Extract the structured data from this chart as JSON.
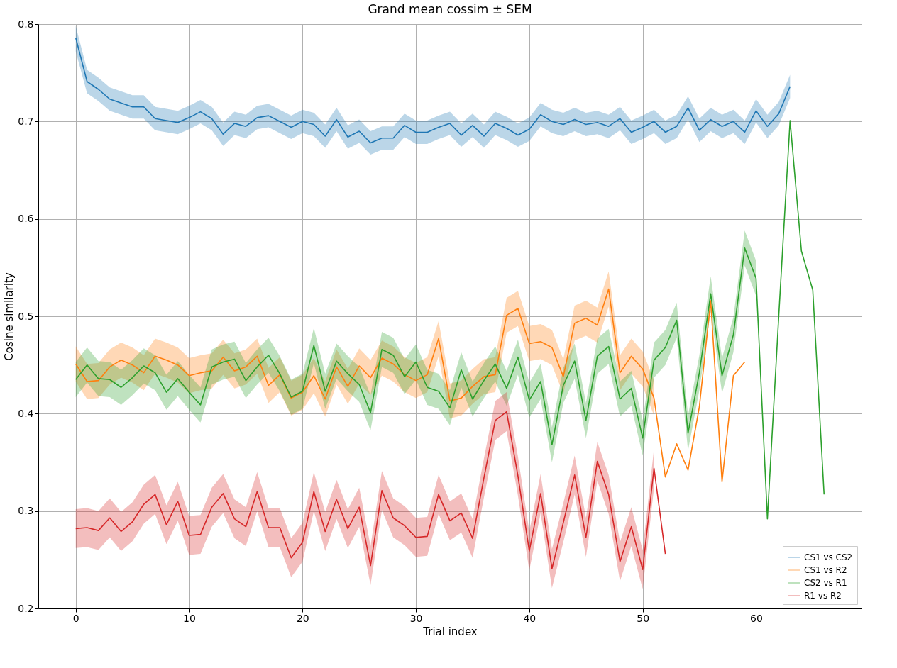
{
  "chart_data": {
    "type": "line",
    "title": "Grand mean cossim ± SEM",
    "xlabel": "Trial index",
    "ylabel": "Cosine similarity",
    "x": [
      0,
      1,
      2,
      3,
      4,
      5,
      6,
      7,
      8,
      9,
      10,
      11,
      12,
      13,
      14,
      15,
      16,
      17,
      18,
      19,
      20,
      21,
      22,
      23,
      24,
      25,
      26,
      27,
      28,
      29,
      30,
      31,
      32,
      33,
      34,
      35,
      36,
      37,
      38,
      39,
      40,
      41,
      42,
      43,
      44,
      45,
      46,
      47,
      48,
      49,
      50,
      51,
      52,
      53,
      54,
      55,
      56,
      57,
      58,
      59,
      60,
      61,
      62,
      63,
      64,
      65,
      66
    ],
    "xlim": [
      -3.3,
      69.3
    ],
    "xticks": [
      0,
      10,
      20,
      30,
      40,
      50,
      60
    ],
    "ylim": [
      0.2,
      0.8
    ],
    "yticks": [
      0.2,
      0.3,
      0.4,
      0.5,
      0.6,
      0.7,
      0.8
    ],
    "grid": true,
    "legend": "bottom right",
    "series": [
      {
        "name": "CS1 vs CS2",
        "color": "#1f77b4",
        "values": [
          0.786,
          0.741,
          0.733,
          0.723,
          0.719,
          0.715,
          0.715,
          0.703,
          0.701,
          0.699,
          0.704,
          0.71,
          0.703,
          0.687,
          0.698,
          0.695,
          0.704,
          0.706,
          0.7,
          0.694,
          0.7,
          0.697,
          0.685,
          0.702,
          0.684,
          0.69,
          0.678,
          0.683,
          0.683,
          0.696,
          0.689,
          0.689,
          0.694,
          0.698,
          0.686,
          0.696,
          0.685,
          0.698,
          0.693,
          0.686,
          0.692,
          0.707,
          0.7,
          0.697,
          0.702,
          0.697,
          0.699,
          0.695,
          0.703,
          0.689,
          0.694,
          0.7,
          0.689,
          0.695,
          0.714,
          0.691,
          0.702,
          0.695,
          0.7,
          0.689,
          0.711,
          0.695,
          0.708,
          0.736,
          null,
          null,
          null
        ],
        "lower": [
          0.772,
          0.729,
          0.721,
          0.711,
          0.707,
          0.703,
          0.703,
          0.691,
          0.689,
          0.687,
          0.692,
          0.698,
          0.691,
          0.675,
          0.686,
          0.683,
          0.692,
          0.694,
          0.688,
          0.682,
          0.688,
          0.685,
          0.673,
          0.69,
          0.672,
          0.678,
          0.666,
          0.671,
          0.671,
          0.684,
          0.677,
          0.677,
          0.682,
          0.686,
          0.674,
          0.684,
          0.673,
          0.686,
          0.681,
          0.674,
          0.68,
          0.695,
          0.688,
          0.685,
          0.69,
          0.685,
          0.687,
          0.683,
          0.691,
          0.677,
          0.682,
          0.688,
          0.677,
          0.683,
          0.702,
          0.679,
          0.69,
          0.683,
          0.688,
          0.677,
          0.699,
          0.683,
          0.696,
          0.724,
          null,
          null,
          null
        ],
        "upper": [
          0.798,
          0.753,
          0.745,
          0.735,
          0.731,
          0.727,
          0.727,
          0.715,
          0.713,
          0.711,
          0.716,
          0.722,
          0.715,
          0.699,
          0.71,
          0.707,
          0.716,
          0.718,
          0.712,
          0.706,
          0.712,
          0.709,
          0.697,
          0.714,
          0.696,
          0.702,
          0.69,
          0.695,
          0.695,
          0.708,
          0.701,
          0.701,
          0.706,
          0.71,
          0.698,
          0.708,
          0.697,
          0.71,
          0.705,
          0.698,
          0.704,
          0.719,
          0.712,
          0.709,
          0.714,
          0.709,
          0.711,
          0.707,
          0.715,
          0.701,
          0.706,
          0.712,
          0.701,
          0.707,
          0.726,
          0.703,
          0.714,
          0.707,
          0.712,
          0.701,
          0.723,
          0.707,
          0.72,
          0.748,
          null,
          null,
          null
        ]
      },
      {
        "name": "CS1 vs R2",
        "color": "#ff7f0e",
        "values": [
          0.451,
          0.433,
          0.434,
          0.448,
          0.455,
          0.45,
          0.442,
          0.459,
          0.455,
          0.45,
          0.439,
          0.442,
          0.444,
          0.458,
          0.444,
          0.448,
          0.459,
          0.429,
          0.44,
          0.416,
          0.422,
          0.439,
          0.415,
          0.448,
          0.428,
          0.449,
          0.437,
          0.457,
          0.451,
          0.44,
          0.434,
          0.44,
          0.477,
          0.413,
          0.416,
          0.428,
          0.438,
          0.44,
          0.501,
          0.508,
          0.472,
          0.474,
          0.468,
          0.438,
          0.493,
          0.498,
          0.491,
          0.528,
          0.442,
          0.459,
          0.446,
          0.416,
          0.335,
          0.369,
          0.342,
          0.407,
          0.516,
          0.33,
          0.439,
          0.453,
          null,
          null,
          null,
          null,
          null,
          null,
          null
        ],
        "lower": [
          0.433,
          0.415,
          0.416,
          0.43,
          0.437,
          0.432,
          0.424,
          0.441,
          0.437,
          0.432,
          0.421,
          0.424,
          0.426,
          0.44,
          0.426,
          0.43,
          0.441,
          0.411,
          0.422,
          0.398,
          0.404,
          0.421,
          0.397,
          0.43,
          0.41,
          0.431,
          0.419,
          0.439,
          0.433,
          0.422,
          0.416,
          0.422,
          0.459,
          0.395,
          0.398,
          0.41,
          0.42,
          0.422,
          0.483,
          0.49,
          0.454,
          0.456,
          0.45,
          0.42,
          0.475,
          0.48,
          0.473,
          0.51,
          0.424,
          0.441,
          0.428,
          0.398,
          null,
          null,
          null,
          null,
          null,
          null,
          null,
          null,
          null,
          null,
          null,
          null,
          null,
          null,
          null
        ],
        "upper": [
          0.469,
          0.451,
          0.452,
          0.466,
          0.473,
          0.468,
          0.46,
          0.477,
          0.473,
          0.468,
          0.457,
          0.46,
          0.462,
          0.476,
          0.462,
          0.466,
          0.477,
          0.447,
          0.458,
          0.434,
          0.44,
          0.457,
          0.433,
          0.466,
          0.446,
          0.467,
          0.455,
          0.475,
          0.469,
          0.458,
          0.452,
          0.458,
          0.495,
          0.431,
          0.434,
          0.446,
          0.456,
          0.458,
          0.519,
          0.526,
          0.49,
          0.492,
          0.486,
          0.456,
          0.511,
          0.516,
          0.509,
          0.546,
          0.46,
          0.477,
          0.464,
          0.434,
          null,
          null,
          null,
          null,
          null,
          null,
          null,
          null,
          null,
          null,
          null,
          null,
          null,
          null,
          null
        ]
      },
      {
        "name": "CS2 vs R1",
        "color": "#2ca02c",
        "values": [
          0.435,
          0.45,
          0.436,
          0.435,
          0.427,
          0.437,
          0.449,
          0.442,
          0.422,
          0.436,
          0.422,
          0.409,
          0.448,
          0.453,
          0.456,
          0.434,
          0.448,
          0.46,
          0.441,
          0.417,
          0.423,
          0.47,
          0.423,
          0.454,
          0.441,
          0.43,
          0.401,
          0.466,
          0.46,
          0.438,
          0.453,
          0.427,
          0.423,
          0.406,
          0.445,
          0.415,
          0.434,
          0.451,
          0.426,
          0.458,
          0.414,
          0.433,
          0.368,
          0.429,
          0.454,
          0.393,
          0.459,
          0.469,
          0.415,
          0.426,
          0.375,
          0.455,
          0.468,
          0.496,
          0.38,
          0.442,
          0.523,
          0.439,
          0.481,
          0.57,
          0.539,
          0.292,
          0.5,
          0.701,
          0.567,
          0.527,
          0.317
        ],
        "lower": [
          0.417,
          0.432,
          0.418,
          0.417,
          0.409,
          0.419,
          0.431,
          0.424,
          0.404,
          0.418,
          0.404,
          0.391,
          0.43,
          0.435,
          0.438,
          0.416,
          0.43,
          0.442,
          0.423,
          0.399,
          0.405,
          0.452,
          0.405,
          0.436,
          0.423,
          0.412,
          0.383,
          0.448,
          0.442,
          0.42,
          0.435,
          0.409,
          0.405,
          0.388,
          0.427,
          0.397,
          0.416,
          0.433,
          0.408,
          0.44,
          0.396,
          0.415,
          0.35,
          0.411,
          0.436,
          0.375,
          0.441,
          0.451,
          0.397,
          0.408,
          0.357,
          0.437,
          0.45,
          0.478,
          0.362,
          0.424,
          0.505,
          0.421,
          0.463,
          0.552,
          0.521,
          null,
          null,
          null,
          null,
          null,
          null
        ],
        "upper": [
          0.453,
          0.468,
          0.454,
          0.453,
          0.445,
          0.455,
          0.467,
          0.46,
          0.44,
          0.454,
          0.44,
          0.427,
          0.466,
          0.471,
          0.474,
          0.452,
          0.466,
          0.478,
          0.459,
          0.435,
          0.441,
          0.488,
          0.441,
          0.472,
          0.459,
          0.448,
          0.419,
          0.484,
          0.478,
          0.456,
          0.471,
          0.445,
          0.441,
          0.424,
          0.463,
          0.433,
          0.452,
          0.469,
          0.444,
          0.476,
          0.432,
          0.451,
          0.386,
          0.447,
          0.472,
          0.411,
          0.477,
          0.487,
          0.433,
          0.444,
          0.393,
          0.473,
          0.486,
          0.514,
          0.398,
          0.46,
          0.541,
          0.457,
          0.499,
          0.588,
          0.557,
          null,
          null,
          null,
          null,
          null,
          null
        ]
      },
      {
        "name": "R1 vs R2",
        "color": "#d62728",
        "values": [
          0.282,
          0.283,
          0.28,
          0.293,
          0.279,
          0.289,
          0.307,
          0.317,
          0.286,
          0.31,
          0.275,
          0.276,
          0.304,
          0.318,
          0.292,
          0.284,
          0.32,
          0.283,
          0.283,
          0.252,
          0.268,
          0.32,
          0.279,
          0.312,
          0.282,
          0.304,
          0.244,
          0.321,
          0.293,
          0.285,
          0.273,
          0.274,
          0.317,
          0.29,
          0.298,
          0.272,
          0.334,
          0.393,
          0.402,
          0.336,
          0.259,
          0.318,
          0.241,
          0.288,
          0.337,
          0.273,
          0.351,
          0.317,
          0.248,
          0.284,
          0.24,
          0.344,
          0.256,
          null,
          null,
          null,
          null,
          null,
          null,
          null,
          null,
          null,
          null,
          null,
          null,
          null,
          null
        ],
        "lower": [
          0.262,
          0.263,
          0.26,
          0.273,
          0.259,
          0.269,
          0.287,
          0.297,
          0.266,
          0.29,
          0.255,
          0.256,
          0.284,
          0.298,
          0.272,
          0.264,
          0.3,
          0.263,
          0.263,
          0.232,
          0.248,
          0.3,
          0.259,
          0.292,
          0.262,
          0.284,
          0.224,
          0.301,
          0.273,
          0.265,
          0.253,
          0.254,
          0.297,
          0.27,
          0.278,
          0.252,
          0.314,
          0.373,
          0.382,
          0.316,
          0.239,
          0.298,
          0.221,
          0.268,
          0.317,
          0.253,
          0.331,
          0.297,
          0.228,
          0.264,
          0.22,
          0.324,
          null,
          null,
          null,
          null,
          null,
          null,
          null,
          null,
          null,
          null,
          null,
          null,
          null,
          null,
          null
        ],
        "upper": [
          0.302,
          0.303,
          0.3,
          0.313,
          0.299,
          0.309,
          0.327,
          0.337,
          0.306,
          0.33,
          0.295,
          0.296,
          0.324,
          0.338,
          0.312,
          0.304,
          0.34,
          0.303,
          0.303,
          0.272,
          0.288,
          0.34,
          0.299,
          0.332,
          0.302,
          0.324,
          0.264,
          0.341,
          0.313,
          0.305,
          0.293,
          0.294,
          0.337,
          0.31,
          0.318,
          0.292,
          0.354,
          0.413,
          0.422,
          0.356,
          0.279,
          0.338,
          0.261,
          0.308,
          0.357,
          0.293,
          0.371,
          0.337,
          0.268,
          0.304,
          0.26,
          0.364,
          null,
          null,
          null,
          null,
          null,
          null,
          null,
          null,
          null,
          null,
          null,
          null,
          null,
          null,
          null
        ]
      }
    ]
  }
}
